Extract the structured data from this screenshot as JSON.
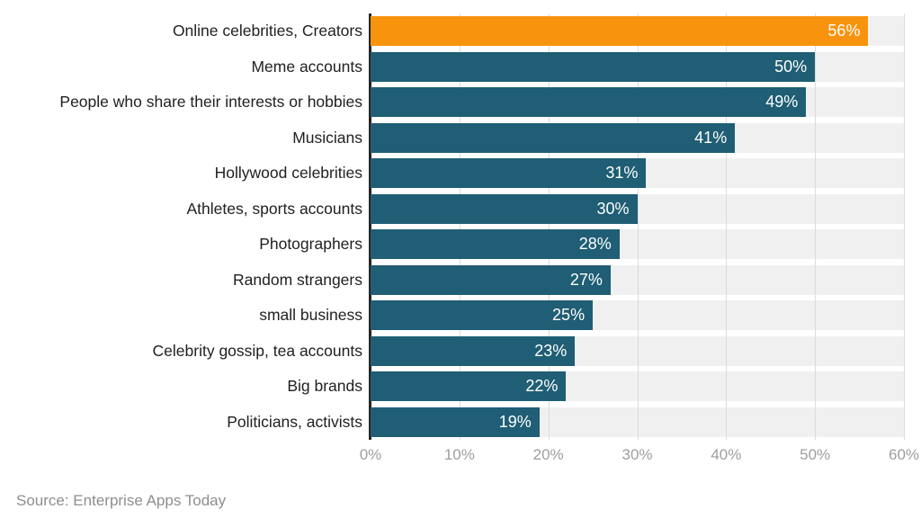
{
  "chart_data": {
    "type": "bar",
    "orientation": "horizontal",
    "title": "",
    "categories": [
      "Online celebrities, Creators",
      "Meme accounts",
      "People who share their interests or hobbies",
      "Musicians",
      "Hollywood celebrities",
      "Athletes, sports accounts",
      "Photographers",
      "Random strangers",
      "small business",
      "Celebrity gossip, tea accounts",
      "Big brands",
      "Politicians, activists"
    ],
    "values": [
      56,
      50,
      49,
      41,
      31,
      30,
      28,
      27,
      25,
      23,
      22,
      19
    ],
    "value_suffix": "%",
    "xlim": [
      0,
      60
    ],
    "x_ticks": [
      "0%",
      "10%",
      "20%",
      "30%",
      "40%",
      "50%",
      "60%"
    ],
    "grid": true,
    "legend": false,
    "highlight_index": 0,
    "colors": {
      "bar": "#1F5E74",
      "highlight_bar": "#F7930D",
      "track": "#F0F0F0",
      "gridline": "#DCDCDC",
      "axis_line": "#262626",
      "category_text": "#212121",
      "tick_text": "#9E9E9E",
      "value_text": "#FFFFFF"
    }
  },
  "footer": {
    "source": "Source: Enterprise Apps Today"
  }
}
